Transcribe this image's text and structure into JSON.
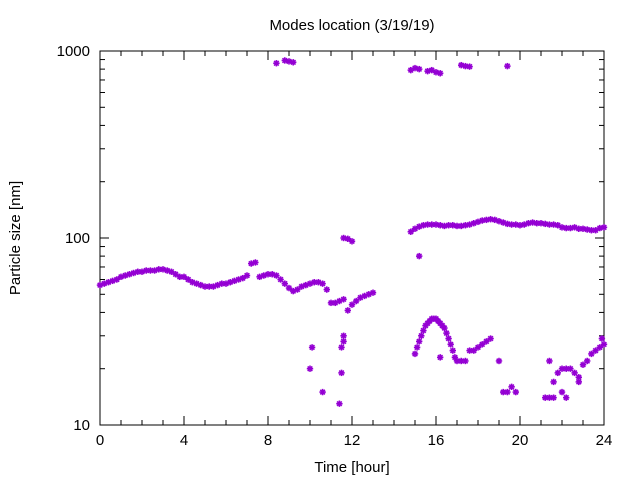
{
  "chart_data": {
    "type": "scatter",
    "title": "Modes location (3/19/19)",
    "xlabel": "Time [hour]",
    "ylabel": "Particle size [nm]",
    "xlim": [
      0,
      24
    ],
    "ylim": [
      10,
      1000
    ],
    "yscale": "log",
    "x_ticks": [
      0,
      4,
      8,
      12,
      16,
      20,
      24
    ],
    "x_tick_labels": [
      "0",
      "4",
      "8",
      "12",
      "16",
      "20",
      "24"
    ],
    "y_ticks": [
      10,
      100,
      1000
    ],
    "y_tick_labels": [
      "10",
      "100",
      "1000"
    ],
    "grid": false,
    "marker_color": "#9400d3",
    "series": [
      {
        "points": [
          [
            0.0,
            56
          ],
          [
            0.2,
            57
          ],
          [
            0.4,
            58
          ],
          [
            0.6,
            59
          ],
          [
            0.8,
            60
          ],
          [
            1.0,
            62
          ],
          [
            1.2,
            63
          ],
          [
            1.4,
            64
          ],
          [
            1.6,
            65
          ],
          [
            1.8,
            66
          ],
          [
            2.0,
            66
          ],
          [
            2.2,
            67
          ],
          [
            2.4,
            67
          ],
          [
            2.6,
            67
          ],
          [
            2.8,
            68
          ],
          [
            3.0,
            68
          ],
          [
            3.2,
            67
          ],
          [
            3.4,
            66
          ],
          [
            3.6,
            64
          ],
          [
            3.8,
            62
          ],
          [
            4.0,
            62
          ],
          [
            4.2,
            60
          ],
          [
            4.4,
            58
          ],
          [
            4.6,
            57
          ],
          [
            4.8,
            56
          ],
          [
            5.0,
            55
          ],
          [
            5.2,
            55
          ],
          [
            5.4,
            55
          ],
          [
            5.6,
            56
          ],
          [
            5.8,
            57
          ],
          [
            6.0,
            57
          ],
          [
            6.2,
            58
          ],
          [
            6.4,
            59
          ],
          [
            6.6,
            60
          ],
          [
            6.8,
            61
          ],
          [
            7.0,
            63
          ],
          [
            7.2,
            73
          ],
          [
            7.4,
            74
          ],
          [
            7.6,
            62
          ],
          [
            7.8,
            63
          ],
          [
            8.0,
            64
          ],
          [
            8.2,
            64
          ],
          [
            8.4,
            63
          ],
          [
            8.6,
            60
          ],
          [
            8.8,
            57
          ],
          [
            9.0,
            54
          ],
          [
            9.2,
            52
          ],
          [
            9.4,
            53
          ],
          [
            9.6,
            55
          ],
          [
            9.8,
            56
          ],
          [
            10.0,
            57
          ],
          [
            10.2,
            58
          ],
          [
            10.4,
            58
          ],
          [
            10.6,
            57
          ],
          [
            10.8,
            53
          ],
          [
            11.0,
            45
          ],
          [
            11.2,
            45
          ],
          [
            11.4,
            46
          ],
          [
            11.6,
            47
          ],
          [
            11.8,
            41
          ],
          [
            12.0,
            44
          ],
          [
            12.2,
            46
          ],
          [
            12.4,
            48
          ],
          [
            12.6,
            49
          ],
          [
            12.8,
            50
          ],
          [
            13.0,
            51
          ],
          [
            14.8,
            108
          ],
          [
            15.0,
            112
          ],
          [
            15.2,
            115
          ],
          [
            15.4,
            117
          ],
          [
            15.6,
            118
          ],
          [
            15.8,
            118
          ],
          [
            16.0,
            118
          ],
          [
            16.2,
            117
          ],
          [
            16.4,
            116
          ],
          [
            16.6,
            117
          ],
          [
            16.8,
            117
          ],
          [
            17.0,
            116
          ],
          [
            17.2,
            116
          ],
          [
            17.4,
            117
          ],
          [
            17.6,
            118
          ],
          [
            17.8,
            120
          ],
          [
            18.0,
            122
          ],
          [
            18.2,
            124
          ],
          [
            18.4,
            125
          ],
          [
            18.6,
            126
          ],
          [
            18.8,
            125
          ],
          [
            19.0,
            123
          ],
          [
            19.2,
            121
          ],
          [
            19.4,
            119
          ],
          [
            19.6,
            118
          ],
          [
            19.8,
            118
          ],
          [
            20.0,
            117
          ],
          [
            20.2,
            118
          ],
          [
            20.4,
            120
          ],
          [
            20.6,
            121
          ],
          [
            20.8,
            120
          ],
          [
            21.0,
            120
          ],
          [
            21.2,
            119
          ],
          [
            21.4,
            118
          ],
          [
            21.6,
            118
          ],
          [
            21.8,
            117
          ],
          [
            22.0,
            114
          ],
          [
            22.2,
            113
          ],
          [
            22.4,
            113
          ],
          [
            22.6,
            114
          ],
          [
            22.8,
            112
          ],
          [
            23.0,
            112
          ],
          [
            23.2,
            111
          ],
          [
            23.4,
            110
          ],
          [
            23.6,
            110
          ],
          [
            23.8,
            113
          ],
          [
            24.0,
            114
          ],
          [
            8.4,
            860
          ],
          [
            8.8,
            890
          ],
          [
            9.0,
            880
          ],
          [
            9.2,
            870
          ],
          [
            14.8,
            790
          ],
          [
            15.0,
            810
          ],
          [
            15.2,
            800
          ],
          [
            15.6,
            780
          ],
          [
            15.8,
            790
          ],
          [
            16.0,
            770
          ],
          [
            16.2,
            760
          ],
          [
            17.2,
            840
          ],
          [
            17.4,
            830
          ],
          [
            17.6,
            825
          ],
          [
            19.4,
            830
          ],
          [
            11.6,
            100
          ],
          [
            11.8,
            99
          ],
          [
            12.0,
            96
          ],
          [
            15.2,
            80
          ],
          [
            10.0,
            20
          ],
          [
            10.1,
            26
          ],
          [
            10.6,
            15
          ],
          [
            11.4,
            13
          ],
          [
            11.5,
            19
          ],
          [
            11.5,
            26
          ],
          [
            11.6,
            28
          ],
          [
            11.6,
            30
          ],
          [
            15.0,
            24
          ],
          [
            15.1,
            26
          ],
          [
            15.2,
            28
          ],
          [
            15.3,
            30
          ],
          [
            15.4,
            32
          ],
          [
            15.5,
            34
          ],
          [
            15.6,
            35
          ],
          [
            15.7,
            36
          ],
          [
            15.8,
            37
          ],
          [
            15.9,
            37
          ],
          [
            16.0,
            37
          ],
          [
            16.1,
            36
          ],
          [
            16.2,
            35
          ],
          [
            16.3,
            34
          ],
          [
            16.4,
            33
          ],
          [
            16.5,
            31
          ],
          [
            16.6,
            29
          ],
          [
            16.7,
            27
          ],
          [
            16.8,
            25
          ],
          [
            16.9,
            23
          ],
          [
            16.2,
            23
          ],
          [
            17.0,
            22
          ],
          [
            17.2,
            22
          ],
          [
            17.4,
            22
          ],
          [
            17.6,
            25
          ],
          [
            17.8,
            25
          ],
          [
            18.0,
            26
          ],
          [
            18.2,
            27
          ],
          [
            18.4,
            28
          ],
          [
            18.6,
            29
          ],
          [
            19.0,
            22
          ],
          [
            19.2,
            15
          ],
          [
            19.4,
            15
          ],
          [
            19.6,
            16
          ],
          [
            19.8,
            15
          ],
          [
            21.2,
            14
          ],
          [
            21.4,
            14
          ],
          [
            21.4,
            22
          ],
          [
            21.6,
            14
          ],
          [
            21.6,
            17
          ],
          [
            21.8,
            19
          ],
          [
            22.0,
            20
          ],
          [
            22.0,
            15
          ],
          [
            22.2,
            14
          ],
          [
            22.2,
            20
          ],
          [
            22.4,
            20
          ],
          [
            22.6,
            19
          ],
          [
            22.8,
            18
          ],
          [
            22.8,
            17
          ],
          [
            23.0,
            21
          ],
          [
            23.2,
            22
          ],
          [
            23.4,
            24
          ],
          [
            23.6,
            25
          ],
          [
            23.8,
            26
          ],
          [
            23.9,
            29
          ],
          [
            24.0,
            27
          ]
        ]
      }
    ]
  }
}
